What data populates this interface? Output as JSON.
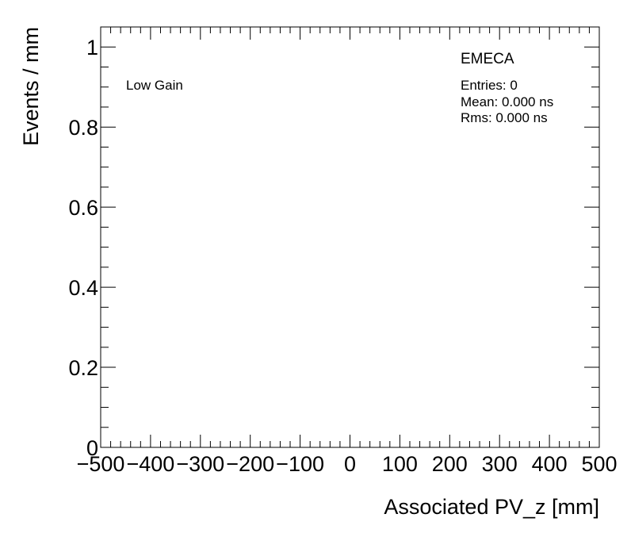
{
  "chart_data": {
    "type": "histogram",
    "xlabel": "Associated PV_z [mm]",
    "ylabel": "Events / mm",
    "xlim": [
      -500,
      500
    ],
    "ylim": [
      0,
      1.05
    ],
    "x_ticks": [
      -500,
      -400,
      -300,
      -200,
      -100,
      0,
      100,
      200,
      300,
      400,
      500
    ],
    "x_tick_labels": [
      "−500",
      "−400",
      "−300",
      "−200",
      "−100",
      "0",
      "100",
      "200",
      "300",
      "400",
      "500"
    ],
    "y_ticks": [
      0,
      0.2,
      0.4,
      0.6,
      0.8,
      1
    ],
    "y_tick_labels": [
      "0",
      "0.2",
      "0.4",
      "0.6",
      "0.8",
      "1"
    ],
    "values": [],
    "grid": false,
    "annotations": {
      "gain": "Low Gain",
      "detector": "EMECA",
      "entries": "Entries: 0",
      "mean": "Mean: 0.000 ns",
      "rms": "Rms: 0.000 ns"
    }
  }
}
